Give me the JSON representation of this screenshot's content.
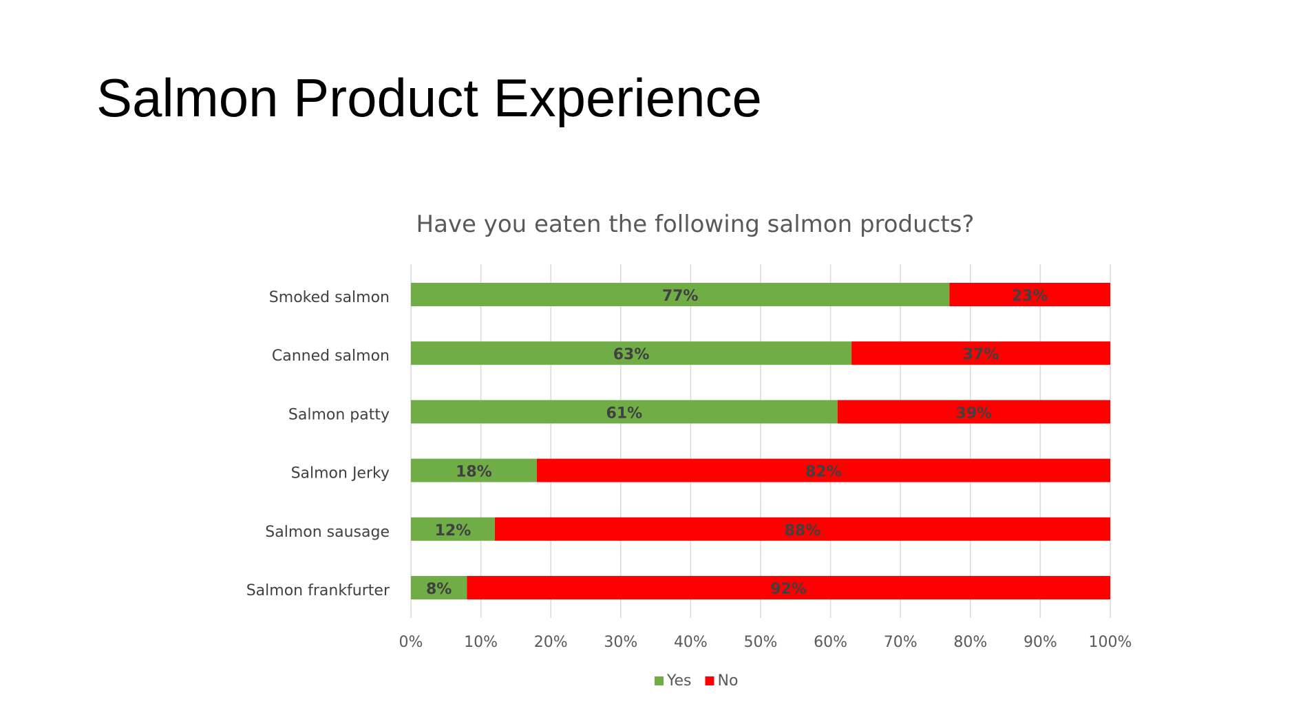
{
  "slide": {
    "title": "Salmon Product Experience"
  },
  "chart_data": {
    "type": "bar",
    "orientation": "horizontal",
    "stacked": true,
    "percent_stacked": true,
    "title": "Have you eaten the following salmon products?",
    "categories": [
      "Smoked salmon",
      "Canned salmon",
      "Salmon patty",
      "Salmon Jerky",
      "Salmon sausage",
      "Salmon frankfurter"
    ],
    "series": [
      {
        "name": "Yes",
        "color": "#70ad47",
        "values": [
          77,
          63,
          61,
          18,
          12,
          8
        ],
        "labels": [
          "77%",
          "63%",
          "61%",
          "18%",
          "12%",
          "8%"
        ]
      },
      {
        "name": "No",
        "color": "#ff0000",
        "values": [
          23,
          37,
          39,
          82,
          88,
          92
        ],
        "labels": [
          "23%",
          "37%",
          "39%",
          "82%",
          "88%",
          "92%"
        ]
      }
    ],
    "xlim": [
      0,
      100
    ],
    "x_ticks": [
      "0%",
      "10%",
      "20%",
      "30%",
      "40%",
      "50%",
      "60%",
      "70%",
      "80%",
      "90%",
      "100%"
    ],
    "grid": true,
    "legend": "bottom"
  }
}
